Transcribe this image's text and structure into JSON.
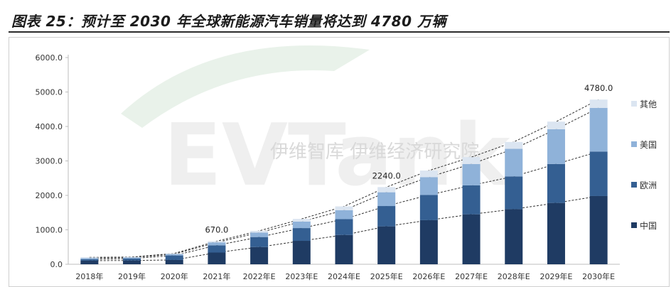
{
  "figure": {
    "title": "图表 25：预计至 2030 年全球新能源汽车销量将达到 4780 万辆"
  },
  "chart_data": {
    "type": "bar",
    "stacked": true,
    "categories": [
      "2018年",
      "2019年",
      "2020年",
      "2021年",
      "2022年E",
      "2023年E",
      "2024年E",
      "2025年E",
      "2026年E",
      "2027年E",
      "2028年E",
      "2029年E",
      "2030年E"
    ],
    "series": [
      {
        "name": "中国",
        "color": "#1f3b63",
        "values": [
          105,
          110,
          125,
          340,
          500,
          680,
          850,
          1100,
          1280,
          1450,
          1600,
          1780,
          1980
        ]
      },
      {
        "name": "欧洲",
        "color": "#345f92",
        "values": [
          40,
          55,
          130,
          210,
          290,
          370,
          460,
          590,
          730,
          840,
          950,
          1130,
          1290
        ]
      },
      {
        "name": "美国",
        "color": "#8fb2d9",
        "values": [
          35,
          30,
          40,
          85,
          130,
          190,
          260,
          400,
          520,
          620,
          800,
          1010,
          1270
        ]
      },
      {
        "name": "其他",
        "color": "#dbe5f1",
        "values": [
          20,
          15,
          20,
          35,
          50,
          75,
          110,
          150,
          190,
          200,
          200,
          220,
          240
        ]
      }
    ],
    "totals_labels": [
      {
        "category": "2021年",
        "text": "670.0"
      },
      {
        "category": "2025年E",
        "text": "2240.0"
      },
      {
        "category": "2030年E",
        "text": "4780.0"
      }
    ],
    "y_ticks": [
      "0.0",
      "1000.0",
      "2000.0",
      "3000.0",
      "4000.0",
      "5000.0",
      "6000.0"
    ],
    "ylim": [
      0,
      6000
    ],
    "xlabel": "",
    "ylabel": "",
    "legend_position": "right",
    "legend_order": [
      "其他",
      "美国",
      "欧洲",
      "中国"
    ],
    "trend_lines": "dashed lines connecting each series' cumulative top across categories",
    "grid": false,
    "watermark": "伊维智库 伊维经济研究院 EVTank"
  }
}
